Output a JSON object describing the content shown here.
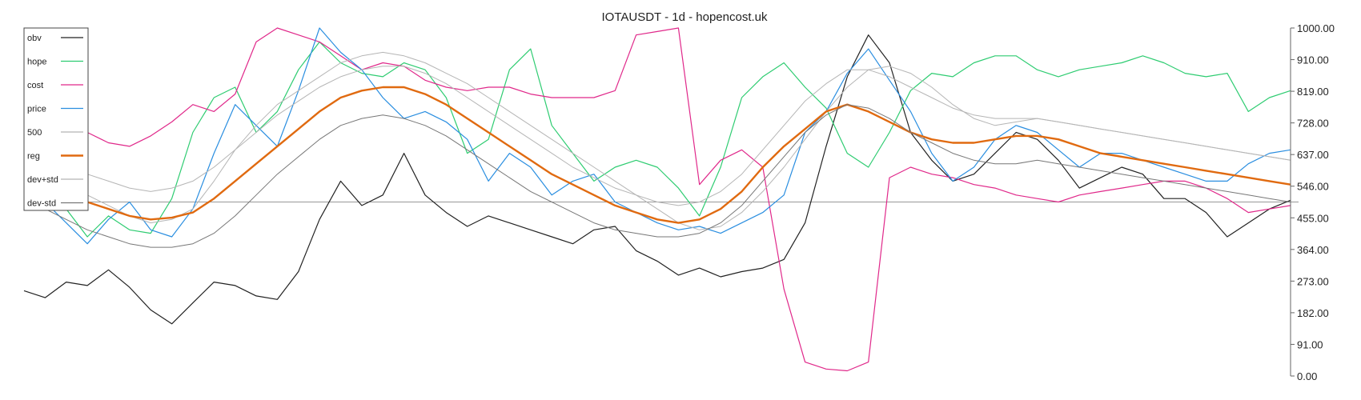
{
  "chart_data": {
    "type": "line",
    "title": "IOTAUSDT - 1d - hopencost.uk",
    "ylim": [
      0,
      1000
    ],
    "y_ticks": [
      "1000.00",
      "910.00",
      "819.00",
      "728.00",
      "637.00",
      "546.00",
      "455.00",
      "364.00",
      "273.00",
      "182.00",
      "91.00",
      "0.00"
    ],
    "legend_position": "top-left",
    "hline": 500,
    "x": [
      0,
      5,
      10,
      15,
      20,
      25,
      30,
      35,
      40,
      45,
      50,
      55,
      60,
      65,
      70,
      75,
      80,
      85,
      90,
      95,
      100,
      105,
      110,
      115,
      120,
      125,
      130,
      135,
      140,
      145,
      150,
      155,
      160,
      165,
      170,
      175,
      180,
      185,
      190,
      195,
      200,
      205,
      210,
      215,
      220,
      225,
      230,
      235,
      240,
      245,
      250,
      255,
      260,
      265,
      270,
      275,
      280,
      285,
      290,
      295,
      300
    ],
    "series": [
      {
        "name": "obv",
        "color": "#222222",
        "width": 1.2,
        "values": [
          245,
          225,
          270,
          260,
          305,
          255,
          190,
          150,
          210,
          270,
          260,
          230,
          220,
          300,
          450,
          560,
          490,
          520,
          640,
          520,
          470,
          430,
          460,
          440,
          420,
          400,
          380,
          420,
          430,
          360,
          330,
          290,
          310,
          285,
          300,
          310,
          335,
          440,
          660,
          860,
          980,
          900,
          700,
          620,
          560,
          580,
          640,
          700,
          680,
          620,
          540,
          570,
          600,
          580,
          510,
          510,
          470,
          400,
          440,
          480,
          505
        ]
      },
      {
        "name": "hope",
        "color": "#2ecc71",
        "width": 1.2,
        "values": [
          510,
          490,
          480,
          400,
          460,
          420,
          410,
          510,
          700,
          800,
          830,
          700,
          760,
          880,
          960,
          900,
          870,
          860,
          900,
          880,
          800,
          640,
          680,
          880,
          940,
          720,
          640,
          560,
          600,
          620,
          600,
          540,
          460,
          600,
          800,
          860,
          900,
          830,
          770,
          640,
          600,
          700,
          820,
          870,
          860,
          900,
          920,
          920,
          880,
          860,
          880,
          890,
          900,
          920,
          900,
          870,
          860,
          870,
          760,
          800,
          820
        ]
      },
      {
        "name": "cost",
        "color": "#e0288a",
        "width": 1.2,
        "values": [
          590,
          640,
          710,
          700,
          670,
          660,
          690,
          730,
          780,
          760,
          810,
          960,
          1000,
          980,
          960,
          920,
          880,
          900,
          890,
          850,
          830,
          820,
          830,
          830,
          810,
          800,
          800,
          800,
          820,
          980,
          990,
          1000,
          550,
          620,
          650,
          600,
          250,
          40,
          20,
          15,
          40,
          570,
          600,
          580,
          570,
          550,
          540,
          520,
          510,
          500,
          520,
          530,
          540,
          550,
          560,
          560,
          540,
          510,
          470,
          480,
          490
        ]
      },
      {
        "name": "price",
        "color": "#2a8ee0",
        "width": 1.2,
        "values": [
          520,
          500,
          440,
          380,
          450,
          500,
          420,
          400,
          480,
          640,
          780,
          720,
          660,
          820,
          1000,
          930,
          880,
          800,
          740,
          760,
          730,
          680,
          560,
          640,
          600,
          520,
          560,
          580,
          500,
          470,
          440,
          420,
          430,
          410,
          440,
          470,
          520,
          700,
          760,
          870,
          940,
          850,
          760,
          640,
          560,
          600,
          680,
          720,
          700,
          650,
          600,
          640,
          640,
          620,
          600,
          580,
          560,
          560,
          610,
          640,
          650
        ]
      },
      {
        "name": "500",
        "color": "#b5b5b5",
        "width": 1.0,
        "values": [
          610,
          590,
          560,
          520,
          490,
          460,
          440,
          450,
          480,
          560,
          650,
          720,
          780,
          820,
          860,
          900,
          920,
          930,
          920,
          900,
          870,
          840,
          800,
          760,
          720,
          680,
          640,
          600,
          560,
          520,
          480,
          440,
          420,
          430,
          470,
          530,
          600,
          680,
          760,
          830,
          880,
          890,
          870,
          830,
          780,
          740,
          720,
          730,
          740,
          730,
          720,
          710,
          700,
          690,
          680,
          670,
          660,
          650,
          640,
          630,
          620
        ]
      },
      {
        "name": "reg",
        "color": "#e06a10",
        "width": 2.4,
        "values": [
          570,
          540,
          520,
          500,
          480,
          460,
          450,
          455,
          470,
          510,
          560,
          610,
          660,
          710,
          760,
          800,
          820,
          830,
          830,
          810,
          780,
          740,
          700,
          660,
          620,
          580,
          550,
          520,
          490,
          470,
          450,
          440,
          450,
          480,
          530,
          600,
          660,
          710,
          760,
          780,
          760,
          730,
          700,
          680,
          670,
          670,
          680,
          690,
          690,
          680,
          660,
          640,
          630,
          620,
          610,
          600,
          590,
          580,
          570,
          560,
          550
        ]
      },
      {
        "name": "dev+std",
        "color": "#b5b5b5",
        "width": 1.0,
        "values": [
          640,
          620,
          600,
          580,
          560,
          540,
          530,
          540,
          560,
          600,
          650,
          700,
          750,
          790,
          830,
          860,
          880,
          890,
          890,
          870,
          840,
          800,
          760,
          720,
          680,
          640,
          600,
          570,
          540,
          520,
          500,
          490,
          500,
          530,
          580,
          650,
          720,
          790,
          840,
          880,
          880,
          860,
          830,
          800,
          770,
          750,
          740,
          740,
          740,
          730,
          720,
          710,
          700,
          690,
          680,
          670,
          660,
          650,
          640,
          630,
          620
        ]
      },
      {
        "name": "dev-std",
        "color": "#777777",
        "width": 1.0,
        "values": [
          500,
          480,
          450,
          420,
          400,
          380,
          370,
          370,
          380,
          410,
          460,
          520,
          580,
          630,
          680,
          720,
          740,
          750,
          740,
          720,
          690,
          650,
          610,
          570,
          530,
          500,
          470,
          440,
          420,
          410,
          400,
          400,
          410,
          440,
          490,
          560,
          630,
          700,
          750,
          780,
          770,
          740,
          700,
          670,
          640,
          620,
          610,
          610,
          620,
          610,
          600,
          590,
          580,
          570,
          560,
          550,
          540,
          530,
          520,
          510,
          500
        ]
      }
    ]
  }
}
